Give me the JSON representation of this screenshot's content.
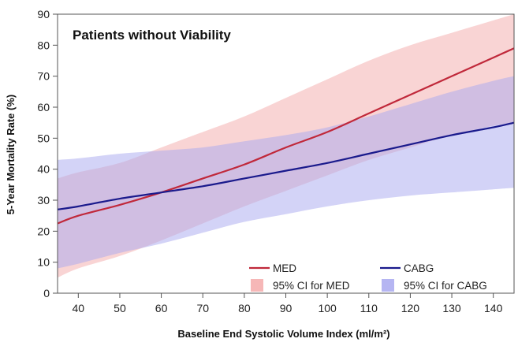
{
  "chart_data": {
    "type": "line",
    "title": "Patients without Viability",
    "xlabel": "Baseline End Systolic Volume Index (ml/m²)",
    "ylabel": "5-Year Mortality Rate (%)",
    "xlim": [
      35,
      145
    ],
    "ylim": [
      0,
      90
    ],
    "xticks": [
      40,
      50,
      60,
      70,
      80,
      90,
      100,
      110,
      120,
      130,
      140
    ],
    "yticks": [
      0,
      10,
      20,
      30,
      40,
      50,
      60,
      70,
      80,
      90
    ],
    "x": [
      35,
      40,
      50,
      60,
      70,
      80,
      90,
      100,
      110,
      120,
      130,
      140,
      145
    ],
    "series": [
      {
        "name": "MED",
        "color": "#c0283a",
        "values": [
          22.5,
          25,
          28.5,
          32.5,
          37,
          41.5,
          47,
          52,
          58,
          64,
          70,
          76,
          79
        ],
        "ci_name": "95% CI for MED",
        "ci_color": "#f4aaaa",
        "ci_lower": [
          5,
          8,
          12,
          17,
          22.5,
          28,
          33,
          38,
          43,
          47,
          51,
          54,
          55
        ],
        "ci_upper": [
          37,
          39,
          42,
          47,
          52,
          57,
          63,
          69,
          75,
          80,
          84,
          88,
          90
        ]
      },
      {
        "name": "CABG",
        "color": "#1a1a8c",
        "values": [
          27,
          28,
          30.5,
          32.5,
          34.5,
          37,
          39.5,
          42,
          45,
          48,
          51,
          53.5,
          55
        ],
        "ci_name": "95% CI for CABG",
        "ci_color": "#a8a8f0",
        "ci_lower": [
          8,
          9.5,
          13,
          16,
          19.5,
          23,
          25.5,
          28,
          30,
          31.5,
          32.5,
          33.5,
          34
        ],
        "ci_upper": [
          43,
          43.5,
          45,
          46,
          47,
          49,
          51,
          53.5,
          57,
          61,
          65,
          68.5,
          70
        ]
      }
    ],
    "legend": [
      {
        "label": "MED",
        "kind": "line",
        "color": "#c0283a"
      },
      {
        "label": "CABG",
        "kind": "line",
        "color": "#1a1a8c"
      },
      {
        "label": "95% CI for MED",
        "kind": "band",
        "color": "#f4aaaa"
      },
      {
        "label": "95% CI for CABG",
        "kind": "band",
        "color": "#a8a8f0"
      }
    ],
    "legend_position": "bottom-right",
    "grid": false
  }
}
